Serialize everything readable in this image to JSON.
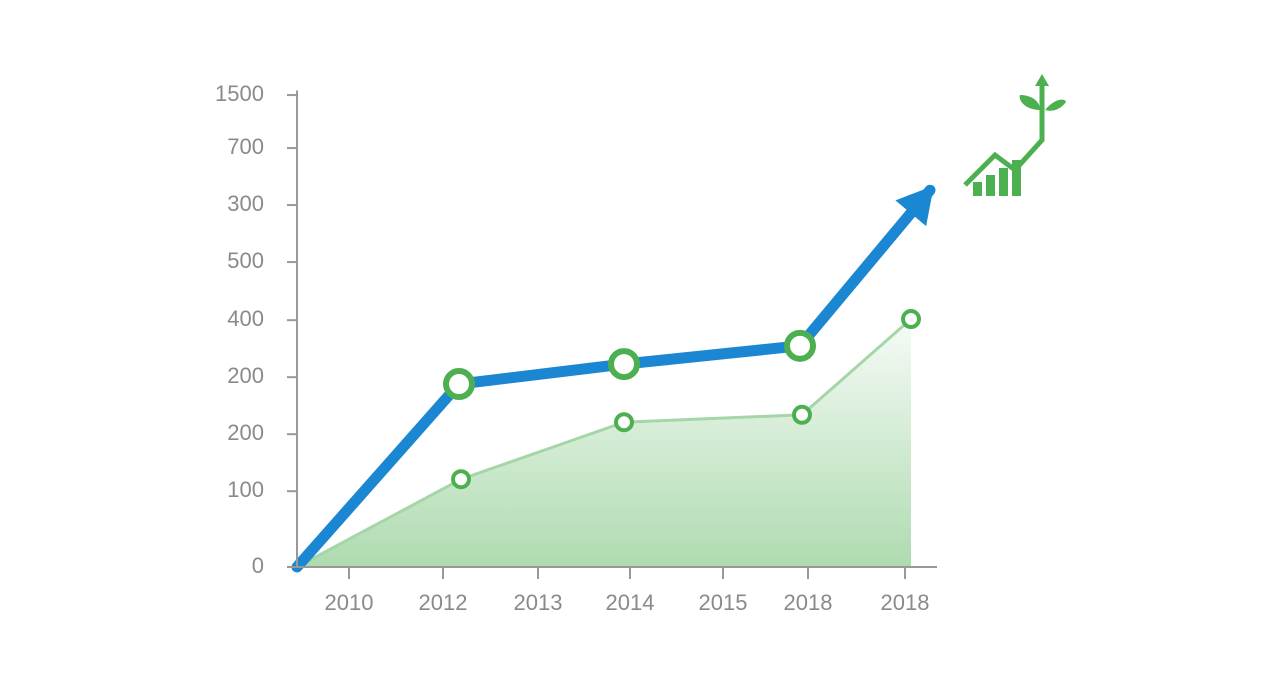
{
  "chart_data": {
    "type": "line",
    "xlim": [
      0,
      640
    ],
    "ylim": [
      0,
      8.5
    ],
    "xticks": [
      {
        "value": 52,
        "label": "2010"
      },
      {
        "value": 146,
        "label": "2012"
      },
      {
        "value": 241,
        "label": "2013"
      },
      {
        "value": 333,
        "label": "2014"
      },
      {
        "value": 426,
        "label": "2015"
      },
      {
        "value": 511,
        "label": "2018"
      },
      {
        "value": 608,
        "label": "2018"
      }
    ],
    "yticks": [
      0,
      {
        "value": 1.33,
        "label": "100"
      },
      {
        "value": 2.33,
        "label": "200"
      },
      {
        "value": 3.33,
        "label": "200"
      },
      {
        "value": 4.33,
        "label": "400"
      },
      {
        "value": 5.35,
        "label": "500"
      },
      {
        "value": 6.35,
        "label": "300"
      },
      {
        "value": 7.35,
        "label": "700"
      },
      {
        "value": 8.28,
        "label": "1500"
      }
    ],
    "series": [
      {
        "color": "#1b87d2",
        "x": [
          0,
          162,
          327,
          503,
          633
        ],
        "values": [
          0,
          3.21,
          3.56,
          3.88,
          6.61
        ]
      },
      {
        "color": "#4caf50",
        "x": [
          0,
          164,
          327,
          505,
          614
        ],
        "values": [
          0,
          1.54,
          2.54,
          2.67,
          4.35
        ],
        "area": true
      }
    ]
  }
}
